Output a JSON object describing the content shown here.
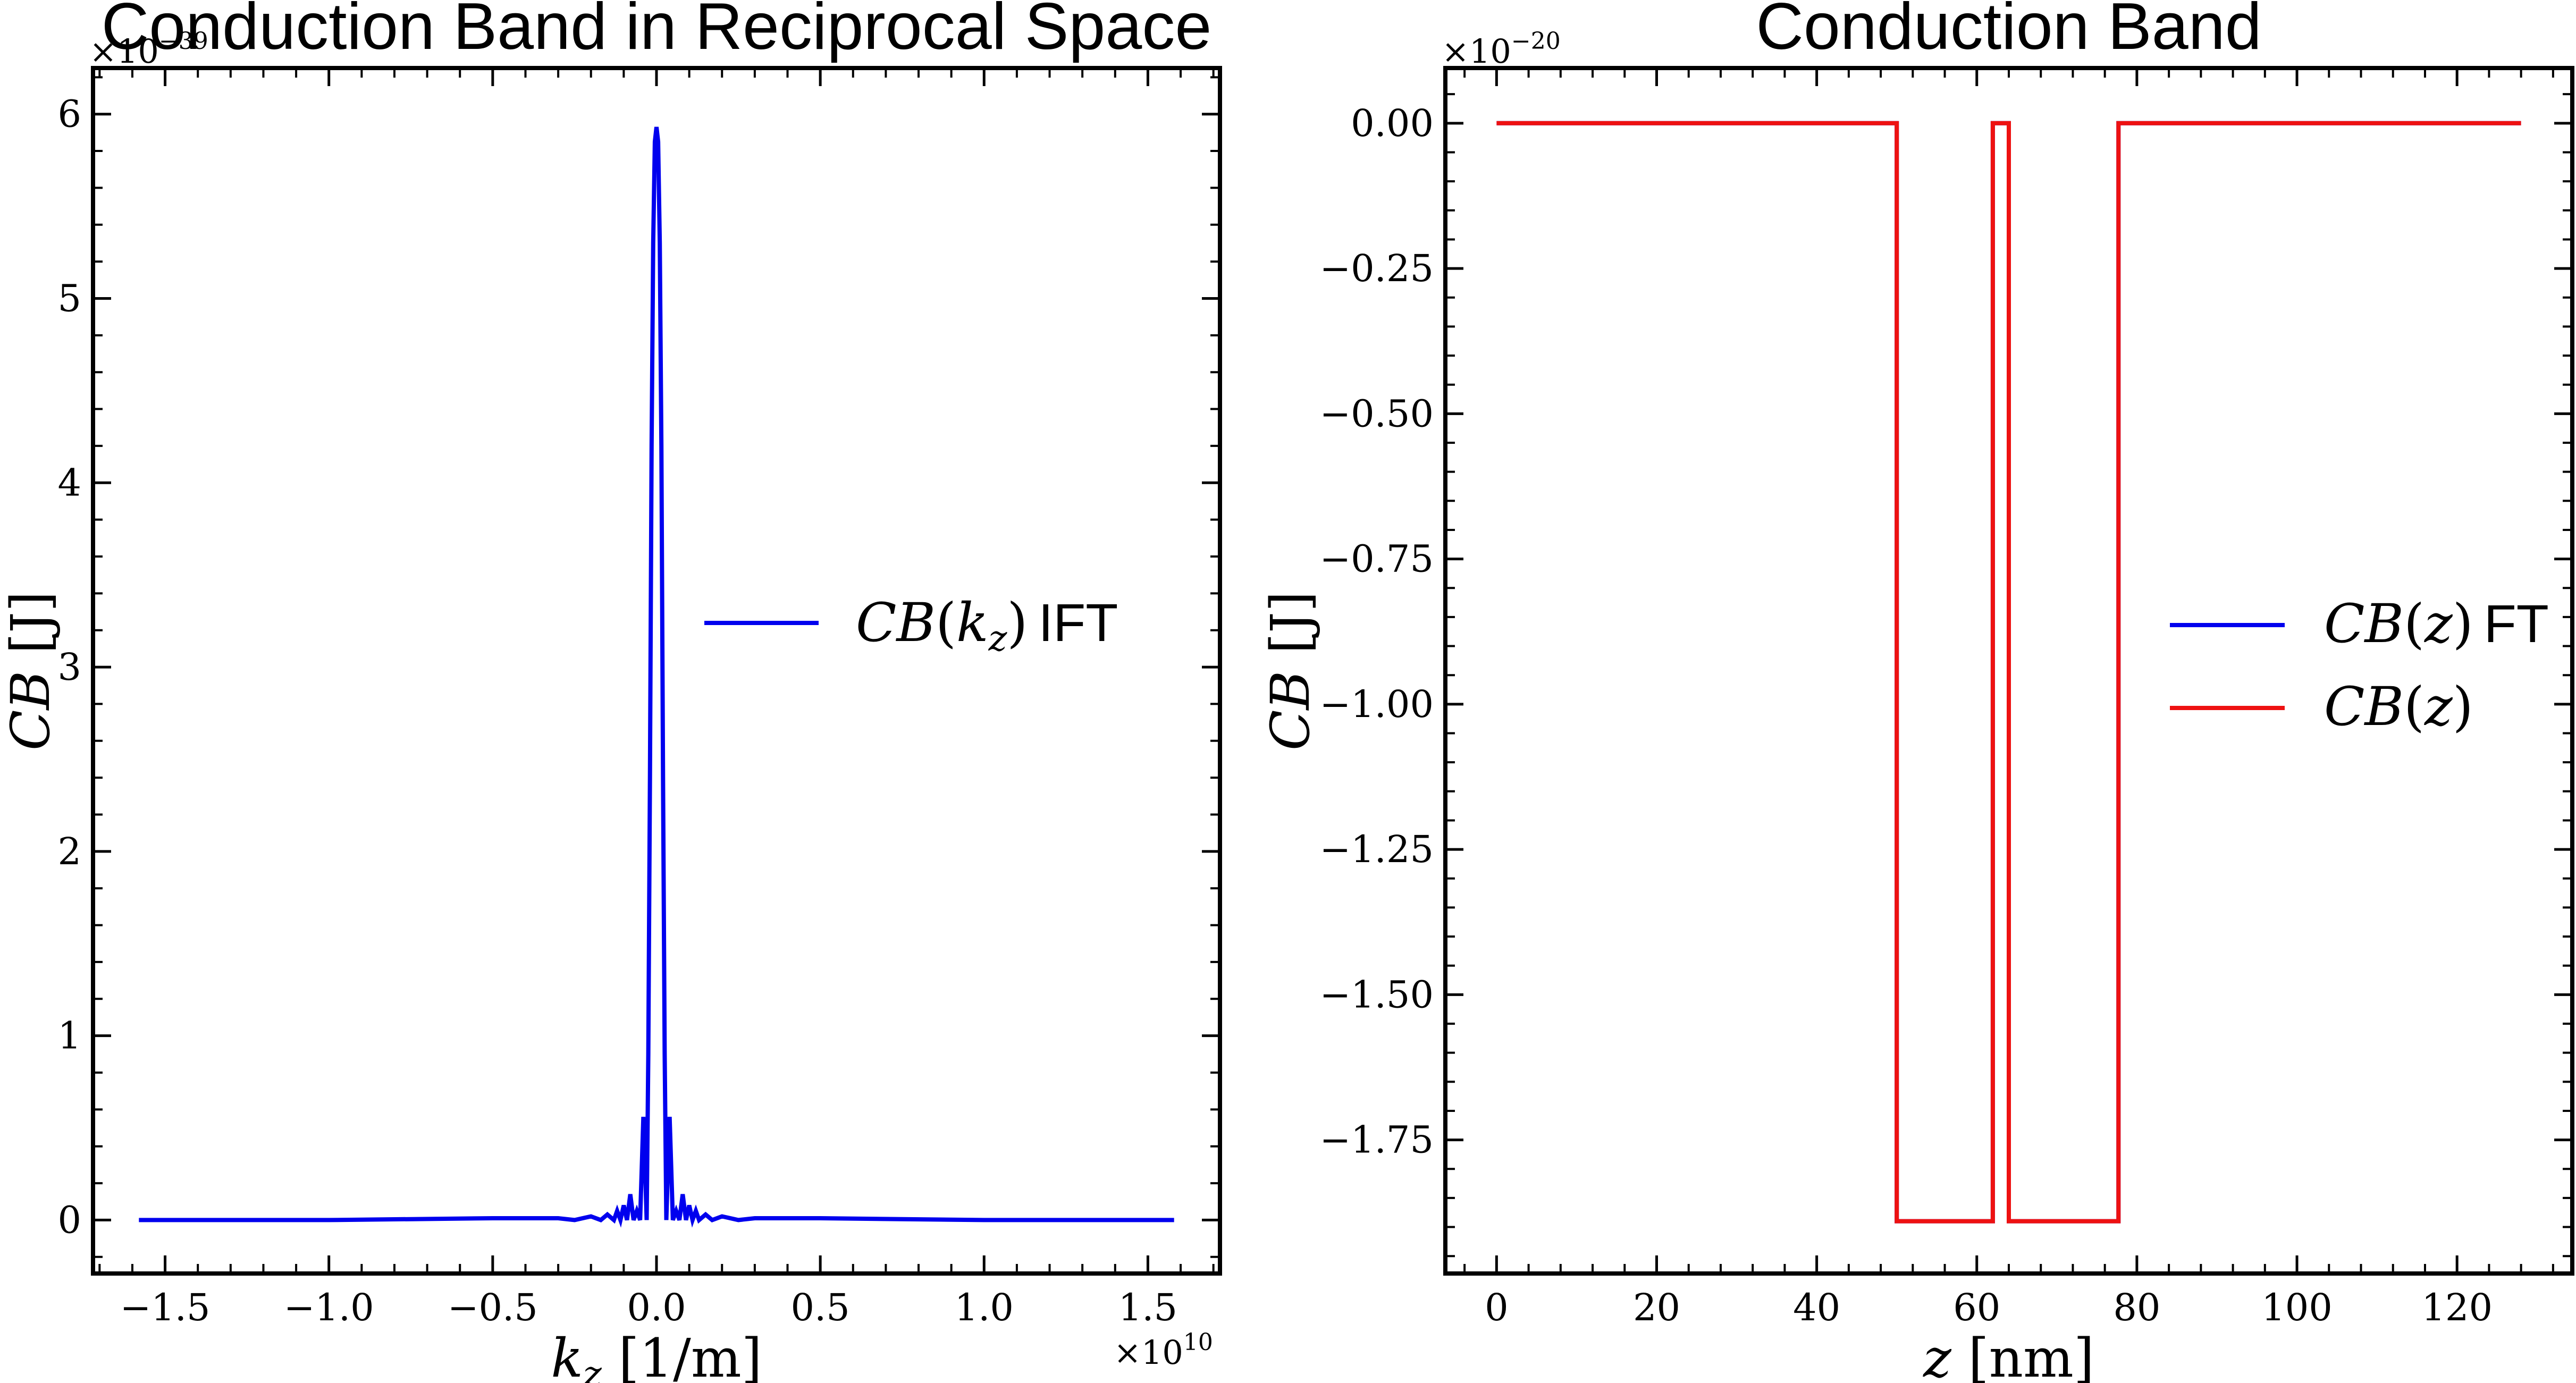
{
  "chart_data": [
    {
      "type": "line",
      "title": "Conduction Band in Reciprocal Space",
      "xlabel": "k_z [1/m]",
      "ylabel": "CB [J]",
      "x_multiplier": "×10^10",
      "y_multiplier": "×10^-39",
      "xlim": [
        -1.72,
        1.72
      ],
      "ylim": [
        -0.29,
        6.25
      ],
      "xticks": [
        -1.5,
        -1.0,
        -0.5,
        0.0,
        0.5,
        1.0,
        1.5
      ],
      "xtick_labels": [
        "−1.5",
        "−1.0",
        "−0.5",
        "0.0",
        "0.5",
        "1.0",
        "1.5"
      ],
      "yticks": [
        0,
        1,
        2,
        3,
        4,
        5,
        6
      ],
      "ytick_labels": [
        "0",
        "1",
        "2",
        "3",
        "4",
        "5",
        "6"
      ],
      "legend_position": "center-right",
      "grid": false,
      "series": [
        {
          "name": "CB(k_z) IFT",
          "color": "#0000ee",
          "x": [
            -1.58,
            -1.0,
            -0.5,
            -0.3,
            -0.25,
            -0.2,
            -0.17,
            -0.15,
            -0.13,
            -0.12,
            -0.11,
            -0.1,
            -0.09,
            -0.08,
            -0.07,
            -0.06,
            -0.05,
            -0.04,
            -0.035,
            -0.03,
            -0.025,
            -0.02,
            -0.015,
            -0.01,
            -0.005,
            0.0,
            0.005,
            0.01,
            0.015,
            0.02,
            0.025,
            0.03,
            0.035,
            0.04,
            0.05,
            0.06,
            0.07,
            0.08,
            0.09,
            0.1,
            0.11,
            0.12,
            0.13,
            0.15,
            0.17,
            0.2,
            0.25,
            0.3,
            0.5,
            1.0,
            1.58
          ],
          "y": [
            0.0,
            0.0,
            0.01,
            0.01,
            0.0,
            0.02,
            0.0,
            0.03,
            0.0,
            0.05,
            0.0,
            0.08,
            0.0,
            0.14,
            0.0,
            0.05,
            0.0,
            0.56,
            0.3,
            0.0,
            0.9,
            2.4,
            4.2,
            5.3,
            5.85,
            5.93,
            5.85,
            5.3,
            4.2,
            2.4,
            0.9,
            0.0,
            0.3,
            0.56,
            0.0,
            0.05,
            0.0,
            0.14,
            0.0,
            0.08,
            0.0,
            0.05,
            0.0,
            0.03,
            0.0,
            0.02,
            0.0,
            0.01,
            0.01,
            0.0,
            0.0
          ]
        }
      ]
    },
    {
      "type": "line",
      "title": "Conduction Band",
      "xlabel": "z [nm]",
      "ylabel": "CB [J]",
      "y_multiplier": "×10^-20",
      "xlim": [
        -6.4,
        134.4
      ],
      "ylim": [
        -1.98,
        0.095
      ],
      "xticks": [
        0,
        20,
        40,
        60,
        80,
        100,
        120
      ],
      "xtick_labels": [
        "0",
        "20",
        "40",
        "60",
        "80",
        "100",
        "120"
      ],
      "yticks": [
        0.0,
        -0.25,
        -0.5,
        -0.75,
        -1.0,
        -1.25,
        -1.5,
        -1.75
      ],
      "ytick_labels": [
        "0.00",
        "−0.25",
        "−0.50",
        "−0.75",
        "−1.00",
        "−1.25",
        "−1.50",
        "−1.75"
      ],
      "legend_position": "center-right",
      "grid": false,
      "series": [
        {
          "name": "CB(z) FT",
          "color": "#0000ee",
          "x": [
            0,
            50,
            50,
            62,
            62,
            64,
            64,
            77.7,
            77.7,
            128
          ],
          "y": [
            0,
            0,
            -1.89,
            -1.89,
            0,
            0,
            -1.89,
            -1.89,
            0,
            0
          ]
        },
        {
          "name": "CB(z)",
          "color": "#ee1111",
          "x": [
            0,
            50,
            50,
            62,
            62,
            64,
            64,
            77.7,
            77.7,
            128
          ],
          "y": [
            0,
            0,
            -1.89,
            -1.89,
            0,
            0,
            -1.89,
            -1.89,
            0,
            0
          ]
        }
      ]
    }
  ]
}
